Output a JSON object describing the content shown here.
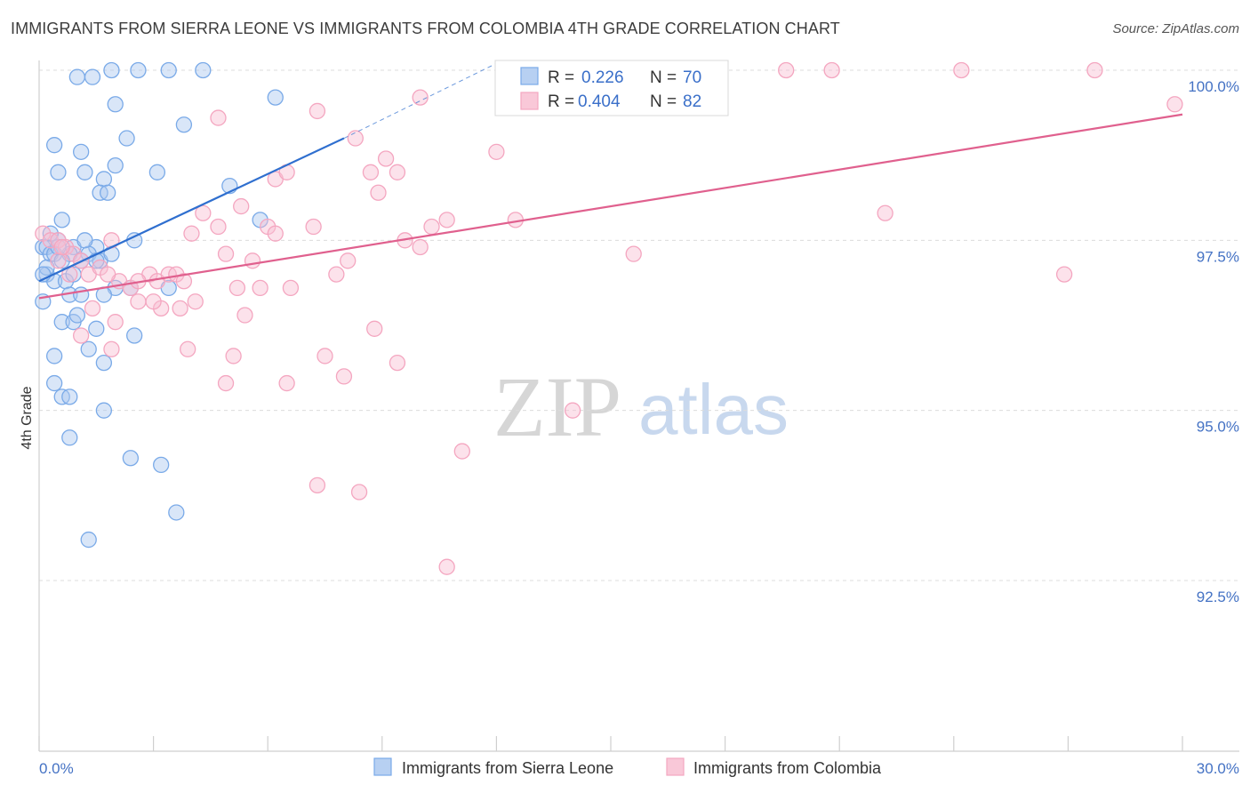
{
  "header": {
    "title": "IMMIGRANTS FROM SIERRA LEONE VS IMMIGRANTS FROM COLOMBIA 4TH GRADE CORRELATION CHART",
    "source": "Source: ZipAtlas.com"
  },
  "watermark": {
    "zip": "ZIP",
    "atlas": "atlas"
  },
  "chart_data": {
    "type": "scatter",
    "title": "IMMIGRANTS FROM SIERRA LEONE VS IMMIGRANTS FROM COLOMBIA 4TH GRADE CORRELATION CHART",
    "xlabel": "",
    "ylabel": "4th Grade",
    "xlim": [
      0,
      30
    ],
    "ylim": [
      90.0,
      100.5
    ],
    "x_tick_labels": {
      "min": "0.0%",
      "max": "30.0%"
    },
    "y_ticks": [
      {
        "value": 100.0,
        "label": "100.0%"
      },
      {
        "value": 97.5,
        "label": "97.5%"
      },
      {
        "value": 95.0,
        "label": "95.0%"
      },
      {
        "value": 92.5,
        "label": "92.5%"
      }
    ],
    "legend": {
      "r_label": "R =",
      "n_label": "N =",
      "entries": [
        {
          "r": "0.226",
          "n": "70"
        },
        {
          "r": "0.404",
          "n": "82"
        }
      ]
    },
    "series": [
      {
        "name": "Immigrants from Sierra Leone",
        "color": "#7aaae8",
        "line_color": "#2f6fcf",
        "trend": {
          "x0": 0.0,
          "y0": 96.9,
          "x1": 8.0,
          "y1": 99.0,
          "dash_to_x": 12.0,
          "dash_to_y": 100.1
        },
        "points": [
          [
            1.0,
            99.9
          ],
          [
            1.4,
            99.9
          ],
          [
            1.9,
            100.0
          ],
          [
            2.6,
            100.0
          ],
          [
            3.4,
            100.0
          ],
          [
            4.3,
            100.0
          ],
          [
            6.2,
            99.6
          ],
          [
            2.0,
            99.5
          ],
          [
            2.3,
            99.0
          ],
          [
            3.8,
            99.2
          ],
          [
            0.4,
            98.9
          ],
          [
            1.1,
            98.8
          ],
          [
            2.0,
            98.6
          ],
          [
            1.2,
            98.5
          ],
          [
            0.5,
            98.5
          ],
          [
            3.1,
            98.5
          ],
          [
            1.7,
            98.4
          ],
          [
            5.0,
            98.3
          ],
          [
            1.6,
            98.2
          ],
          [
            1.8,
            98.2
          ],
          [
            0.6,
            97.8
          ],
          [
            5.8,
            97.8
          ],
          [
            2.5,
            97.5
          ],
          [
            0.1,
            97.4
          ],
          [
            0.2,
            97.4
          ],
          [
            0.5,
            97.5
          ],
          [
            0.9,
            97.4
          ],
          [
            1.5,
            97.4
          ],
          [
            0.3,
            97.3
          ],
          [
            0.4,
            97.3
          ],
          [
            0.8,
            97.3
          ],
          [
            1.3,
            97.3
          ],
          [
            1.6,
            97.2
          ],
          [
            0.6,
            97.2
          ],
          [
            1.9,
            97.3
          ],
          [
            1.1,
            97.2
          ],
          [
            0.2,
            97.0
          ],
          [
            0.4,
            96.9
          ],
          [
            0.7,
            96.9
          ],
          [
            2.0,
            96.8
          ],
          [
            2.4,
            96.8
          ],
          [
            3.4,
            96.8
          ],
          [
            0.8,
            96.7
          ],
          [
            1.1,
            96.7
          ],
          [
            1.7,
            96.7
          ],
          [
            0.1,
            96.6
          ],
          [
            0.6,
            96.3
          ],
          [
            0.9,
            96.3
          ],
          [
            1.0,
            96.4
          ],
          [
            1.5,
            96.2
          ],
          [
            2.5,
            96.1
          ],
          [
            1.3,
            95.9
          ],
          [
            1.7,
            95.7
          ],
          [
            0.4,
            95.8
          ],
          [
            0.4,
            95.4
          ],
          [
            0.6,
            95.2
          ],
          [
            0.8,
            95.2
          ],
          [
            1.7,
            95.0
          ],
          [
            0.8,
            94.6
          ],
          [
            2.4,
            94.3
          ],
          [
            3.2,
            94.2
          ],
          [
            3.6,
            93.5
          ],
          [
            1.3,
            93.1
          ],
          [
            0.2,
            97.1
          ],
          [
            0.3,
            97.6
          ],
          [
            1.5,
            97.2
          ],
          [
            0.1,
            97.0
          ],
          [
            0.9,
            97.0
          ],
          [
            0.5,
            97.4
          ],
          [
            1.2,
            97.5
          ]
        ]
      },
      {
        "name": "Immigrants from Colombia",
        "color": "#f4a6c0",
        "line_color": "#e0608e",
        "trend": {
          "x0": 0.0,
          "y0": 96.65,
          "x1": 30.0,
          "y1": 99.35
        },
        "points": [
          [
            0.1,
            97.6
          ],
          [
            0.3,
            97.5
          ],
          [
            0.5,
            97.5
          ],
          [
            0.7,
            97.4
          ],
          [
            0.9,
            97.3
          ],
          [
            1.1,
            97.2
          ],
          [
            1.3,
            97.0
          ],
          [
            1.6,
            97.1
          ],
          [
            1.9,
            97.5
          ],
          [
            0.5,
            97.2
          ],
          [
            0.8,
            97.0
          ],
          [
            1.4,
            96.5
          ],
          [
            2.1,
            96.9
          ],
          [
            2.4,
            96.8
          ],
          [
            2.6,
            96.6
          ],
          [
            2.9,
            97.0
          ],
          [
            3.1,
            96.9
          ],
          [
            3.4,
            97.0
          ],
          [
            3.6,
            97.0
          ],
          [
            3.8,
            96.9
          ],
          [
            4.0,
            97.6
          ],
          [
            4.3,
            97.9
          ],
          [
            4.7,
            97.7
          ],
          [
            4.9,
            97.3
          ],
          [
            5.2,
            96.8
          ],
          [
            5.6,
            97.2
          ],
          [
            5.8,
            96.8
          ],
          [
            6.0,
            97.7
          ],
          [
            6.2,
            97.6
          ],
          [
            6.6,
            96.8
          ],
          [
            7.2,
            97.7
          ],
          [
            7.8,
            97.0
          ],
          [
            8.1,
            97.2
          ],
          [
            8.7,
            98.5
          ],
          [
            8.9,
            98.2
          ],
          [
            9.1,
            98.7
          ],
          [
            9.4,
            98.5
          ],
          [
            9.6,
            97.5
          ],
          [
            10.0,
            97.4
          ],
          [
            10.3,
            97.7
          ],
          [
            10.7,
            97.8
          ],
          [
            4.7,
            99.3
          ],
          [
            5.3,
            98.0
          ],
          [
            6.2,
            98.4
          ],
          [
            6.5,
            98.5
          ],
          [
            7.3,
            99.4
          ],
          [
            8.3,
            99.0
          ],
          [
            10.0,
            99.6
          ],
          [
            12.0,
            98.8
          ],
          [
            12.5,
            97.8
          ],
          [
            15.6,
            97.3
          ],
          [
            19.6,
            100.0
          ],
          [
            20.8,
            100.0
          ],
          [
            24.2,
            100.0
          ],
          [
            27.7,
            100.0
          ],
          [
            29.8,
            99.5
          ],
          [
            22.2,
            97.9
          ],
          [
            26.9,
            97.0
          ],
          [
            1.1,
            96.1
          ],
          [
            1.9,
            95.9
          ],
          [
            3.9,
            95.9
          ],
          [
            5.1,
            95.8
          ],
          [
            4.9,
            95.4
          ],
          [
            6.5,
            95.4
          ],
          [
            7.5,
            95.8
          ],
          [
            8.0,
            95.5
          ],
          [
            8.8,
            96.2
          ],
          [
            9.4,
            95.7
          ],
          [
            2.0,
            96.3
          ],
          [
            3.2,
            96.5
          ],
          [
            3.7,
            96.5
          ],
          [
            5.4,
            96.4
          ],
          [
            7.3,
            93.9
          ],
          [
            8.4,
            93.8
          ],
          [
            11.1,
            94.4
          ],
          [
            10.7,
            92.7
          ],
          [
            14.0,
            95.0
          ],
          [
            2.6,
            96.9
          ],
          [
            4.1,
            96.6
          ],
          [
            3.0,
            96.6
          ],
          [
            1.8,
            97.0
          ],
          [
            0.6,
            97.4
          ]
        ]
      }
    ]
  }
}
